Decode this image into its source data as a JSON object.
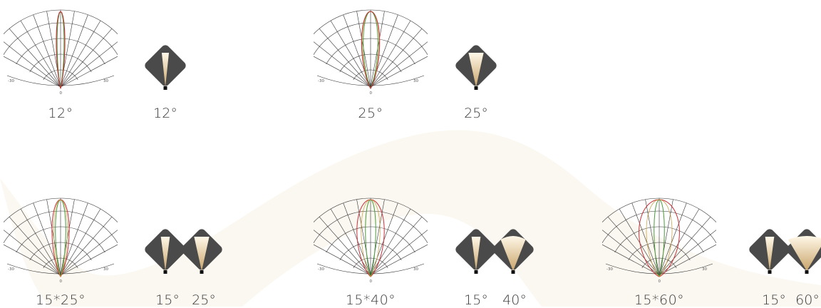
{
  "colors": {
    "background": "#ffffff",
    "swoosh": "#fbf8f1",
    "grid": "#333333",
    "curve_red": "#c8303a",
    "curve_green": "#4a9a3a",
    "curve_gold": "#c79a3a",
    "icon_dark": "#4a4a4a",
    "beam_light": "#fff8e8",
    "beam_gold": "#c9a46a"
  },
  "polar_axis": {
    "left": "-30",
    "center": "0",
    "right": "30"
  },
  "items": [
    {
      "caption": "12°",
      "icon_labels": [
        "12°"
      ],
      "beams": [
        12
      ],
      "narrow": 12,
      "wide": 12
    },
    {
      "caption": "25°",
      "icon_labels": [
        "25°"
      ],
      "beams": [
        25
      ],
      "narrow": 25,
      "wide": 25
    },
    {
      "caption": "15*25°",
      "icon_labels": [
        "15°",
        "25°"
      ],
      "beams": [
        15,
        25
      ],
      "narrow": 15,
      "wide": 25
    },
    {
      "caption": "15*40°",
      "icon_labels": [
        "15°",
        "40°"
      ],
      "beams": [
        15,
        40
      ],
      "narrow": 15,
      "wide": 40
    },
    {
      "caption": "15*60°",
      "icon_labels": [
        "15°",
        "60°"
      ],
      "beams": [
        15,
        60
      ],
      "narrow": 15,
      "wide": 60
    }
  ]
}
